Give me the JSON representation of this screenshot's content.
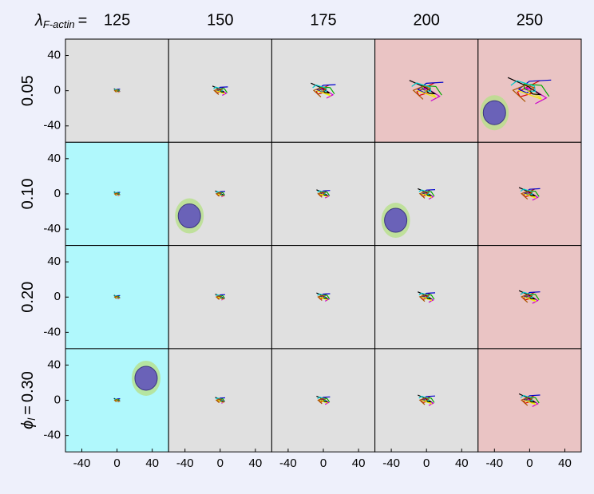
{
  "chart_data": {
    "type": "panel-grid",
    "column_param": "λ",
    "column_param_sub": "F-actin",
    "column_equals": "=",
    "columns": [
      125,
      150,
      175,
      200,
      250
    ],
    "row_param": "ϕ",
    "row_param_sub": "l",
    "row_equals": "=",
    "rows": [
      "0.05",
      "0.10",
      "0.20",
      "0.30"
    ],
    "panel_colors": [
      [
        "#e0e0e0",
        "#e0e0e0",
        "#e0e0e0",
        "#eac4c4",
        "#eac4c4"
      ],
      [
        "#b0f8fc",
        "#e0e0e0",
        "#e0e0e0",
        "#e0e0e0",
        "#eac4c4"
      ],
      [
        "#b0f8fc",
        "#e0e0e0",
        "#e0e0e0",
        "#e0e0e0",
        "#eac4c4"
      ],
      [
        "#b0f8fc",
        "#e0e0e0",
        "#e0e0e0",
        "#e0e0e0",
        "#eac4c4"
      ]
    ],
    "xlim": [
      -58.6,
      58.6
    ],
    "ylim": [
      -58.6,
      58.6
    ],
    "xticks": [
      -40,
      0,
      40
    ],
    "yticks": [
      -40,
      0,
      40
    ]
  }
}
